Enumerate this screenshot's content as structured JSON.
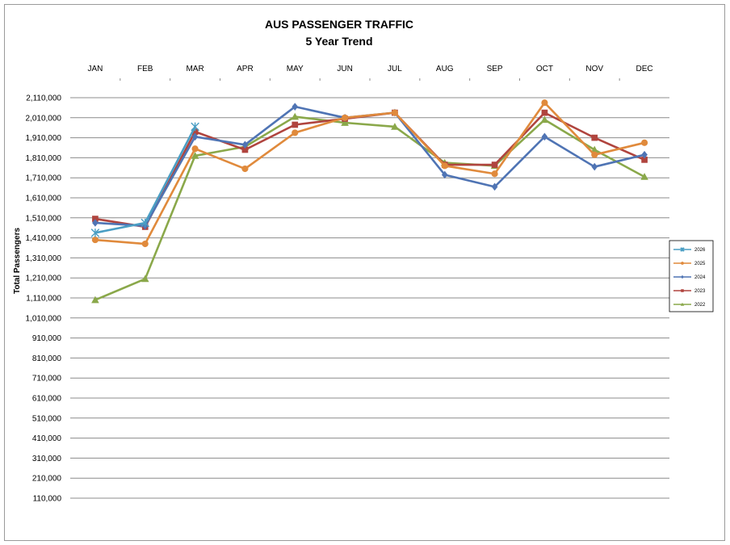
{
  "chart_data": {
    "type": "line",
    "title": "AUS PASSENGER TRAFFIC",
    "subtitle": "5 Year Trend",
    "xlabel": "",
    "ylabel": "Total Passengers",
    "categories": [
      "JAN",
      "FEB",
      "MAR",
      "APR",
      "MAY",
      "JUN",
      "JUL",
      "AUG",
      "SEP",
      "OCT",
      "NOV",
      "DEC"
    ],
    "ylim": [
      110000,
      2110000
    ],
    "yticks": [
      "2,110,000",
      "2,010,000",
      "1,910,000",
      "1,810,000",
      "1,710,000",
      "1,610,000",
      "1,510,000",
      "1,410,000",
      "1,310,000",
      "1,210,000",
      "1,110,000",
      "1,010,000",
      "910,000",
      "810,000",
      "710,000",
      "610,000",
      "510,000",
      "410,000",
      "310,000",
      "210,000",
      "110,000"
    ],
    "ytick_values": [
      2110000,
      2010000,
      1910000,
      1810000,
      1710000,
      1610000,
      1510000,
      1410000,
      1310000,
      1210000,
      1110000,
      1010000,
      910000,
      810000,
      710000,
      610000,
      510000,
      410000,
      310000,
      210000,
      110000
    ],
    "grid": "horizontal",
    "legend_position": "right",
    "series": [
      {
        "name": "2026",
        "color": "#4a9ec4",
        "marker": "x",
        "values": [
          1435000,
          1485000,
          1965000,
          null,
          null,
          null,
          null,
          null,
          null,
          null,
          null,
          null
        ]
      },
      {
        "name": "2025",
        "color": "#e08a3c",
        "marker": "circle",
        "values": [
          1400000,
          1380000,
          1855000,
          1755000,
          1935000,
          2010000,
          2035000,
          1770000,
          1730000,
          2085000,
          1825000,
          1885000
        ]
      },
      {
        "name": "2024",
        "color": "#4f74b4",
        "marker": "diamond",
        "values": [
          1485000,
          1470000,
          1915000,
          1875000,
          2065000,
          2010000,
          2035000,
          1725000,
          1665000,
          1915000,
          1765000,
          1825000
        ]
      },
      {
        "name": "2023",
        "color": "#b0443e",
        "marker": "square",
        "values": [
          1505000,
          1465000,
          1940000,
          1850000,
          1975000,
          2005000,
          2035000,
          1775000,
          1775000,
          2035000,
          1910000,
          1800000
        ]
      },
      {
        "name": "2022",
        "color": "#8aa84a",
        "marker": "triangle",
        "values": [
          1100000,
          1205000,
          1820000,
          1865000,
          2015000,
          1985000,
          1965000,
          1785000,
          1770000,
          2000000,
          1850000,
          1715000
        ]
      }
    ]
  }
}
